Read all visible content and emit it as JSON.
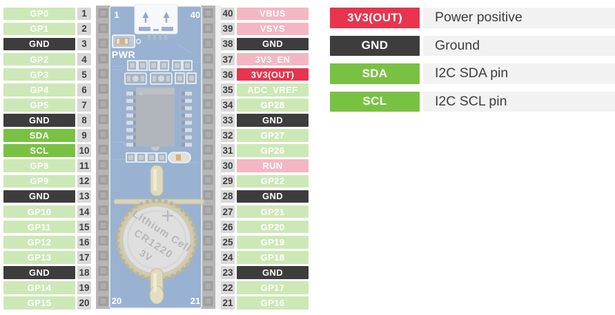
{
  "colors": {
    "gpio": "#cde8b7",
    "gnd": "#3d3d3d",
    "power": "#f5b6c3",
    "powerout": "#e8344e",
    "i2c": "#79c143",
    "numbox": "#d8d8d8",
    "descbg": "#f2f2f3",
    "pcb": "#7d9dc6"
  },
  "left_pins": [
    {
      "label": "GP0",
      "num": "1",
      "type": "gpio"
    },
    {
      "label": "GP1",
      "num": "2",
      "type": "gpio"
    },
    {
      "label": "GND",
      "num": "3",
      "type": "gnd"
    },
    {
      "label": "GP2",
      "num": "4",
      "type": "gpio"
    },
    {
      "label": "GP3",
      "num": "5",
      "type": "gpio"
    },
    {
      "label": "GP4",
      "num": "6",
      "type": "gpio"
    },
    {
      "label": "GP5",
      "num": "7",
      "type": "gpio"
    },
    {
      "label": "GND",
      "num": "8",
      "type": "gnd"
    },
    {
      "label": "SDA",
      "num": "9",
      "type": "i2c"
    },
    {
      "label": "SCL",
      "num": "10",
      "type": "i2c"
    },
    {
      "label": "GP8",
      "num": "11",
      "type": "gpio"
    },
    {
      "label": "GP9",
      "num": "12",
      "type": "gpio"
    },
    {
      "label": "GND",
      "num": "13",
      "type": "gnd"
    },
    {
      "label": "GP10",
      "num": "14",
      "type": "gpio"
    },
    {
      "label": "GP11",
      "num": "15",
      "type": "gpio"
    },
    {
      "label": "GP12",
      "num": "16",
      "type": "gpio"
    },
    {
      "label": "GP13",
      "num": "17",
      "type": "gpio"
    },
    {
      "label": "GND",
      "num": "18",
      "type": "gnd"
    },
    {
      "label": "GP14",
      "num": "19",
      "type": "gpio"
    },
    {
      "label": "GP15",
      "num": "20",
      "type": "gpio"
    }
  ],
  "right_pins": [
    {
      "label": "VBUS",
      "num": "40",
      "type": "power"
    },
    {
      "label": "VSYS",
      "num": "39",
      "type": "power"
    },
    {
      "label": "GND",
      "num": "38",
      "type": "gnd"
    },
    {
      "label": "3V3_EN",
      "num": "37",
      "type": "power"
    },
    {
      "label": "3V3(OUT)",
      "num": "36",
      "type": "powerout"
    },
    {
      "label": "ADC_VREF",
      "num": "35",
      "type": "gpio"
    },
    {
      "label": "GP28",
      "num": "34",
      "type": "gpio"
    },
    {
      "label": "GND",
      "num": "33",
      "type": "gnd"
    },
    {
      "label": "GP27",
      "num": "32",
      "type": "gpio"
    },
    {
      "label": "GP26",
      "num": "31",
      "type": "gpio"
    },
    {
      "label": "RUN",
      "num": "30",
      "type": "power"
    },
    {
      "label": "GP22",
      "num": "29",
      "type": "gpio"
    },
    {
      "label": "GND",
      "num": "28",
      "type": "gnd"
    },
    {
      "label": "GP21",
      "num": "27",
      "type": "gpio"
    },
    {
      "label": "GP20",
      "num": "26",
      "type": "gpio"
    },
    {
      "label": "GP19",
      "num": "25",
      "type": "gpio"
    },
    {
      "label": "GP18",
      "num": "24",
      "type": "gpio"
    },
    {
      "label": "GND",
      "num": "23",
      "type": "gnd"
    },
    {
      "label": "GP17",
      "num": "22",
      "type": "gpio"
    },
    {
      "label": "GP16",
      "num": "21",
      "type": "gpio"
    }
  ],
  "legend": [
    {
      "label": "3V3(OUT)",
      "type": "powerout",
      "desc": "Power positive"
    },
    {
      "label": "GND",
      "type": "gnd",
      "desc": "Ground"
    },
    {
      "label": "SDA",
      "type": "i2c",
      "desc": "I2C SDA pin"
    },
    {
      "label": "SCL",
      "type": "i2c",
      "desc": "I2C SCL pin"
    }
  ],
  "board": {
    "pin1": "1",
    "pin40": "40",
    "pin20": "20",
    "pin21": "21",
    "pwr_label": "PWR",
    "battery": {
      "line1": "Lithium Cell",
      "line2": "CR1220",
      "line3": "3V"
    }
  }
}
